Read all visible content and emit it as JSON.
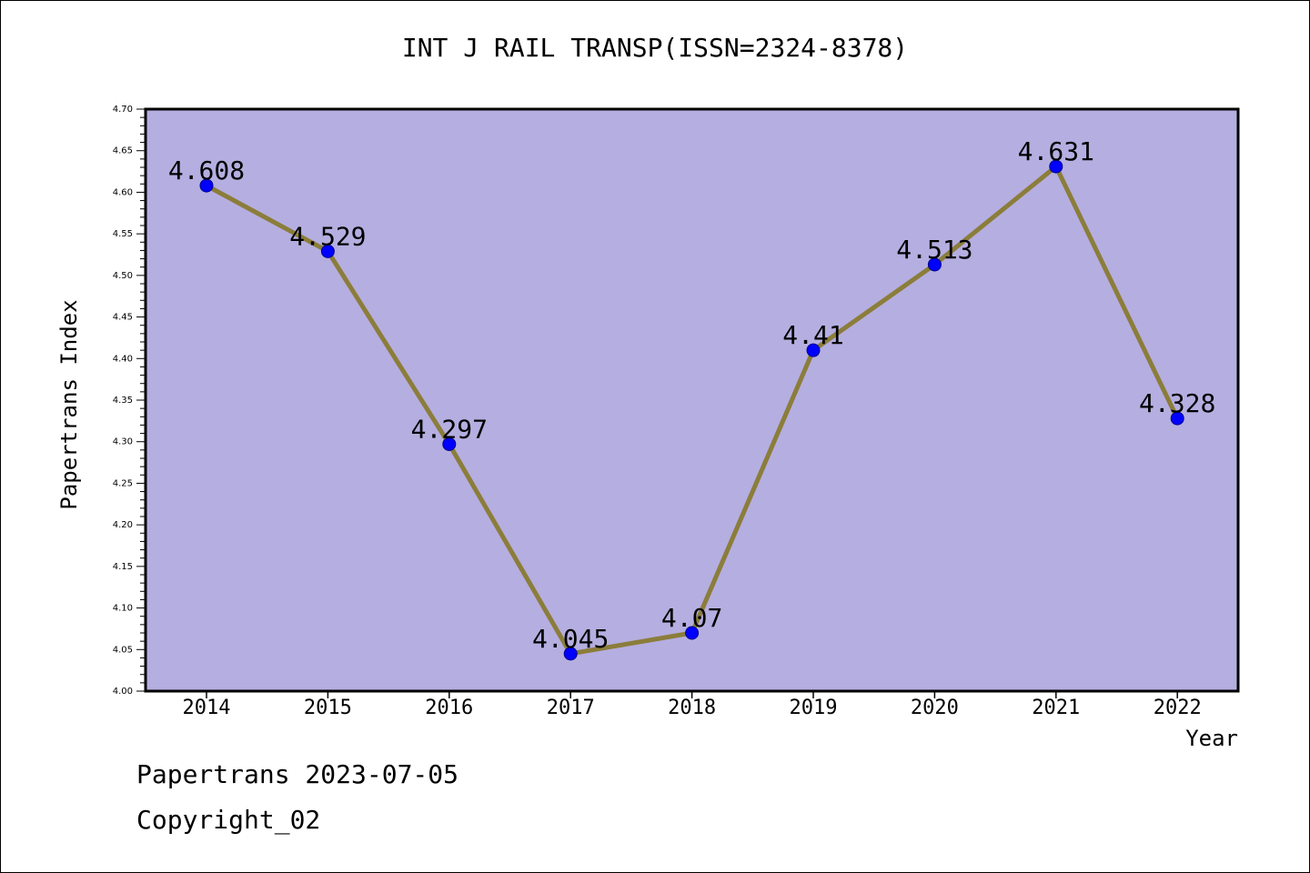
{
  "chart_data": {
    "type": "line",
    "title": "INT J RAIL TRANSP(ISSN=2324-8378)",
    "xlabel": "Year",
    "ylabel": "Papertrans Index",
    "categories": [
      "2014",
      "2015",
      "2016",
      "2017",
      "2018",
      "2019",
      "2020",
      "2021",
      "2022"
    ],
    "values": [
      4.608,
      4.529,
      4.297,
      4.045,
      4.07,
      4.41,
      4.513,
      4.631,
      4.328
    ],
    "data_labels": [
      "4.608",
      "4.529",
      "4.297",
      "4.045",
      "4.07",
      "4.41",
      "4.513",
      "4.631",
      "4.328"
    ],
    "ylim": [
      4.0,
      4.7
    ],
    "y_ticks": [
      "4.00",
      "4.05",
      "4.10",
      "4.15",
      "4.20",
      "4.25",
      "4.30",
      "4.35",
      "4.40",
      "4.45",
      "4.50",
      "4.55",
      "4.60",
      "4.65",
      "4.70"
    ],
    "grid": false,
    "legend": "none",
    "colors": {
      "plot_background": "#b5aee0",
      "line": "#8b7d3a",
      "marker": "#0000ff"
    }
  },
  "footer": {
    "date_line": "Papertrans 2023-07-05",
    "copyright": "Copyright_02"
  }
}
